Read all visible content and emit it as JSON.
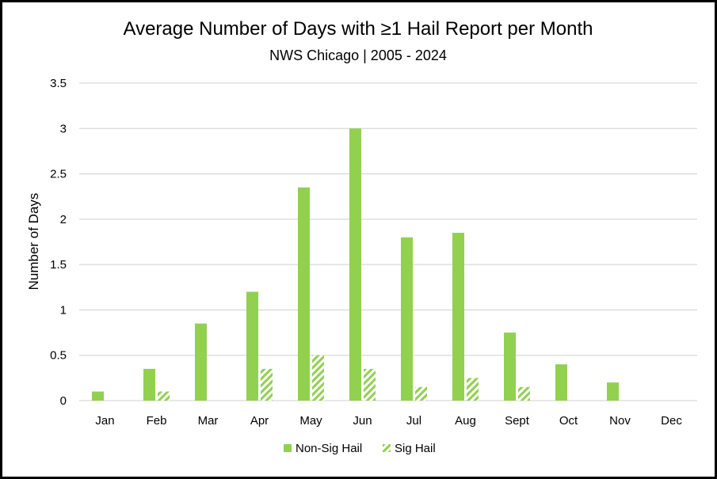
{
  "chart_data": {
    "type": "bar",
    "title": "Average Number of Days with ≥1 Hail Report per Month",
    "subtitle": "NWS Chicago  | 2005 - 2024",
    "ylabel": "Number of Days",
    "xlabel": "",
    "ylim": [
      0,
      3.5
    ],
    "yticks": [
      "0",
      "0.5",
      "1",
      "1.5",
      "2",
      "2.5",
      "3",
      "3.5"
    ],
    "categories": [
      "Jan",
      "Feb",
      "Mar",
      "Apr",
      "May",
      "Jun",
      "Jul",
      "Aug",
      "Sept",
      "Oct",
      "Nov",
      "Dec"
    ],
    "series": [
      {
        "name": "Non-Sig Hail",
        "color": "#92d050",
        "pattern": "solid",
        "values": [
          0.1,
          0.35,
          0.85,
          1.2,
          2.35,
          3.0,
          1.8,
          1.85,
          0.75,
          0.4,
          0.2,
          0
        ]
      },
      {
        "name": "Sig Hail",
        "color": "#92d050",
        "pattern": "diagonal-hatch",
        "values": [
          0,
          0.1,
          0,
          0.35,
          0.5,
          0.35,
          0.15,
          0.25,
          0.15,
          0,
          0,
          0
        ]
      }
    ],
    "grid": true,
    "legend_position": "bottom"
  }
}
